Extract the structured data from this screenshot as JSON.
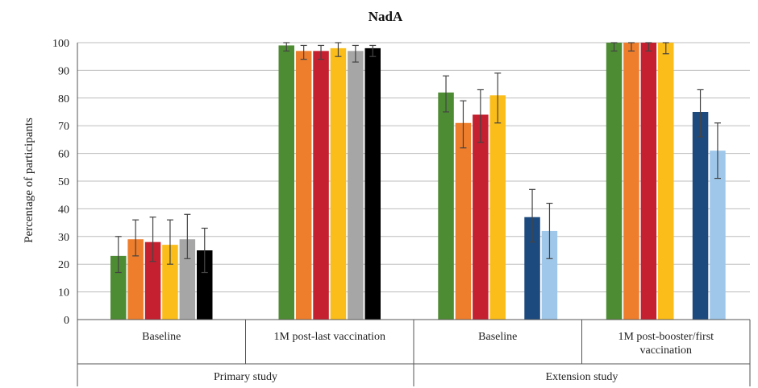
{
  "chart_data": {
    "type": "bar",
    "title": "NadA",
    "ylabel": "Percentage of participants",
    "ylim": [
      0,
      100
    ],
    "yticks": [
      0,
      10,
      20,
      30,
      40,
      50,
      60,
      70,
      80,
      90,
      100
    ],
    "grid": true,
    "colors": [
      "#4e8c33",
      "#ee7d2c",
      "#c5202f",
      "#fbbd1a",
      "#a6a6a6",
      "#000000",
      "#1d4a7e",
      "#9fc7e9"
    ],
    "groups": [
      {
        "name": "Primary study",
        "categories": [
          {
            "lines": [
              "Baseline"
            ],
            "bars": [
              {
                "color_index": 0,
                "value": 23,
                "err_low": 17,
                "err_high": 30
              },
              {
                "color_index": 1,
                "value": 29,
                "err_low": 23,
                "err_high": 36
              },
              {
                "color_index": 2,
                "value": 28,
                "err_low": 21,
                "err_high": 37
              },
              {
                "color_index": 3,
                "value": 27,
                "err_low": 20,
                "err_high": 36
              },
              {
                "color_index": 4,
                "value": 29,
                "err_low": 22,
                "err_high": 38
              },
              {
                "color_index": 5,
                "value": 25,
                "err_low": 17,
                "err_high": 33
              }
            ]
          },
          {
            "lines": [
              "1M post-last vaccination"
            ],
            "bars": [
              {
                "color_index": 0,
                "value": 99,
                "err_low": 97,
                "err_high": 100
              },
              {
                "color_index": 1,
                "value": 97,
                "err_low": 94,
                "err_high": 99
              },
              {
                "color_index": 2,
                "value": 97,
                "err_low": 94,
                "err_high": 99
              },
              {
                "color_index": 3,
                "value": 98,
                "err_low": 95,
                "err_high": 100
              },
              {
                "color_index": 4,
                "value": 97,
                "err_low": 93,
                "err_high": 99
              },
              {
                "color_index": 5,
                "value": 98,
                "err_low": 95,
                "err_high": 99
              }
            ]
          }
        ]
      },
      {
        "name": "Extension study",
        "categories": [
          {
            "lines": [
              "Baseline"
            ],
            "bars": [
              {
                "color_index": 0,
                "value": 82,
                "err_low": 75,
                "err_high": 88
              },
              {
                "color_index": 1,
                "value": 71,
                "err_low": 62,
                "err_high": 79
              },
              {
                "color_index": 2,
                "value": 74,
                "err_low": 64,
                "err_high": 83
              },
              {
                "color_index": 3,
                "value": 81,
                "err_low": 71,
                "err_high": 89
              },
              {
                "gap": true
              },
              {
                "color_index": 6,
                "value": 37,
                "err_low": 28,
                "err_high": 47
              },
              {
                "color_index": 7,
                "value": 32,
                "err_low": 22,
                "err_high": 42
              }
            ]
          },
          {
            "lines": [
              "1M post-booster/first",
              "vaccination"
            ],
            "bars": [
              {
                "color_index": 0,
                "value": 100,
                "err_low": 97,
                "err_high": 100
              },
              {
                "color_index": 1,
                "value": 100,
                "err_low": 97,
                "err_high": 100
              },
              {
                "color_index": 2,
                "value": 100,
                "err_low": 97,
                "err_high": 100
              },
              {
                "color_index": 3,
                "value": 100,
                "err_low": 96,
                "err_high": 100
              },
              {
                "gap": true
              },
              {
                "color_index": 6,
                "value": 75,
                "err_low": 66,
                "err_high": 83
              },
              {
                "color_index": 7,
                "value": 61,
                "err_low": 51,
                "err_high": 71
              }
            ]
          }
        ]
      }
    ]
  }
}
